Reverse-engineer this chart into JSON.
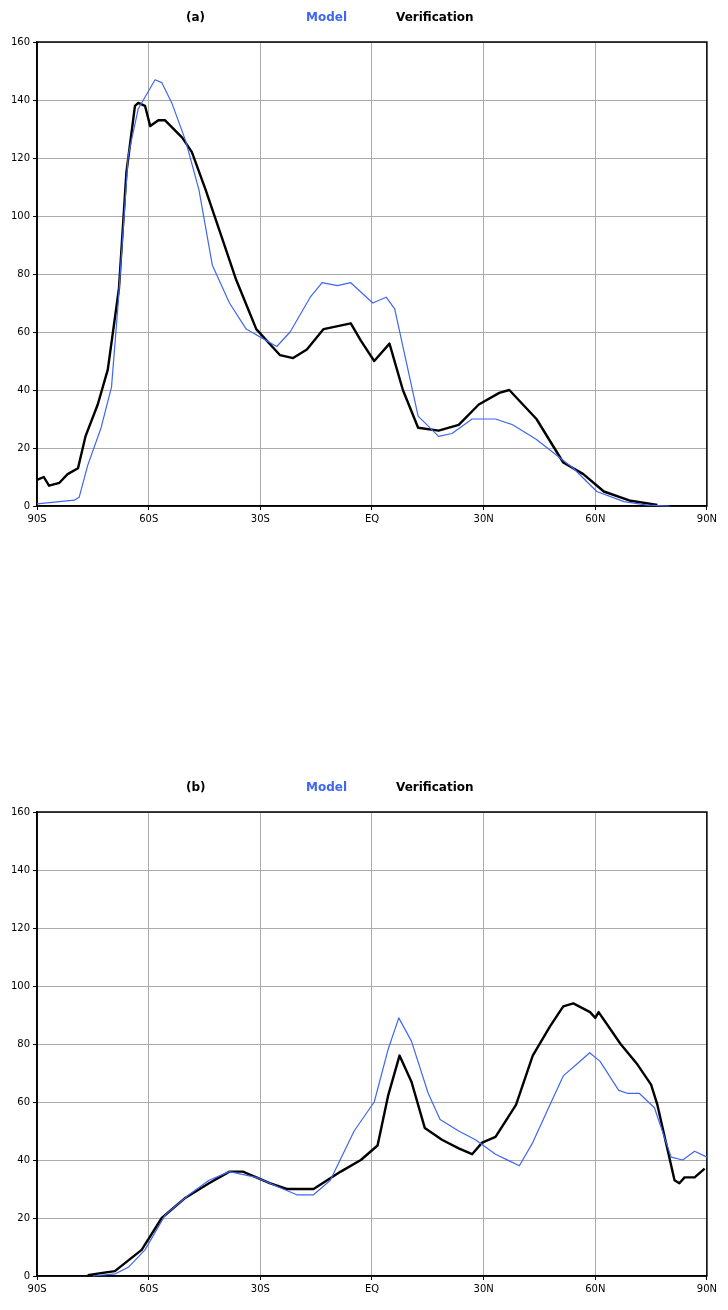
{
  "chart_data": [
    {
      "type": "line",
      "title": "(a)",
      "legend": "top",
      "grid": true,
      "xlim": [
        -90,
        90
      ],
      "ylim": [
        0,
        160
      ],
      "xticks": [
        {
          "value": -90,
          "label": "90S"
        },
        {
          "value": -60,
          "label": "60S"
        },
        {
          "value": -30,
          "label": "30S"
        },
        {
          "value": 0,
          "label": "EQ"
        },
        {
          "value": 30,
          "label": "30N"
        },
        {
          "value": 60,
          "label": "60N"
        },
        {
          "value": 90,
          "label": "90N"
        }
      ],
      "yticks": [
        0,
        20,
        40,
        60,
        80,
        100,
        120,
        140,
        160
      ],
      "series": [
        {
          "name": "Model",
          "color": "#3f66f0",
          "x": [
            -90,
            -80,
            -78.7,
            -76.4,
            -72.8,
            -70,
            -68.2,
            -65.5,
            -62.8,
            -58.3,
            -56.5,
            -53.8,
            -50.1,
            -46.5,
            -42.9,
            -38.3,
            -33.8,
            -25.6,
            -22,
            -16.6,
            -13.4,
            -9.3,
            -5.7,
            0.2,
            3.8,
            6.1,
            12.4,
            17.9,
            21.5,
            26.9,
            33.2,
            37.8,
            44.1,
            54.1,
            60.4,
            67.7,
            74,
            80
          ],
          "values": [
            0.7,
            2,
            3,
            14,
            27,
            41,
            70,
            121,
            137,
            147,
            146,
            139,
            126,
            109,
            83,
            70,
            61,
            55,
            60,
            72,
            77,
            76,
            77,
            70,
            72,
            68,
            31,
            24,
            25,
            30,
            30,
            28,
            23,
            13,
            5,
            1.5,
            0.3,
            0
          ]
        },
        {
          "name": "Verification",
          "color": "#000000",
          "x": [
            -90,
            -88.2,
            -86.8,
            -84,
            -81.8,
            -79,
            -77,
            -73.7,
            -71,
            -68,
            -66,
            -63.7,
            -62.8,
            -61,
            -59.6,
            -57.4,
            -55.6,
            -51,
            -48.4,
            -44.7,
            -40.2,
            -36.5,
            -31.1,
            -24.7,
            -21.2,
            -17.5,
            -13,
            -5.7,
            -3,
            0.6,
            4.7,
            8.3,
            12.4,
            17.9,
            23.3,
            28.7,
            34.2,
            36.9,
            44.2,
            51.4,
            56.8,
            62.3,
            69.5,
            76.7
          ],
          "values": [
            9,
            10,
            7,
            8,
            11,
            13,
            24,
            35,
            47,
            75,
            115,
            138,
            139,
            138,
            131,
            133,
            133,
            127,
            122,
            109,
            92,
            78,
            61,
            52,
            51,
            54,
            61,
            63,
            57,
            50,
            56,
            40,
            27,
            26,
            28,
            35,
            39,
            40,
            30,
            15,
            11,
            5,
            1.8,
            0.4
          ]
        }
      ]
    },
    {
      "type": "line",
      "title": "(b)",
      "legend": "top",
      "grid": true,
      "xlim": [
        -90,
        90
      ],
      "ylim": [
        0,
        160
      ],
      "xticks": [
        {
          "value": -90,
          "label": "90S"
        },
        {
          "value": -60,
          "label": "60S"
        },
        {
          "value": -30,
          "label": "30S"
        },
        {
          "value": 0,
          "label": "EQ"
        },
        {
          "value": 30,
          "label": "30N"
        },
        {
          "value": 60,
          "label": "60N"
        },
        {
          "value": 90,
          "label": "90N"
        }
      ],
      "yticks": [
        0,
        20,
        40,
        60,
        80,
        100,
        120,
        140,
        160
      ],
      "series": [
        {
          "name": "Model",
          "color": "#3f66f0",
          "x": [
            -75,
            -69.1,
            -65.5,
            -61,
            -55.6,
            -49.2,
            -43.8,
            -38.3,
            -31.1,
            -23.9,
            -20.2,
            -15.7,
            -11.2,
            -4.8,
            0.6,
            4.3,
            7.2,
            10.6,
            15.1,
            18.3,
            23.3,
            27.8,
            33.2,
            39.6,
            43.2,
            47.8,
            51.4,
            55,
            58.5,
            61.3,
            66.3,
            68.6,
            71.8,
            75.9,
            80.4,
            83.5,
            86.7,
            90
          ],
          "values": [
            0,
            0.7,
            3,
            9,
            21,
            28,
            33,
            36,
            34,
            30,
            28,
            28,
            33,
            50,
            60,
            78,
            89,
            81,
            63,
            54,
            50,
            47,
            42,
            38,
            46,
            59,
            69,
            73,
            77,
            74,
            64,
            63,
            63,
            58,
            41,
            40,
            43,
            41
          ]
        },
        {
          "name": "Verification",
          "color": "#000000",
          "x": [
            -76.4,
            -69.1,
            -61.9,
            -56.5,
            -50.1,
            -43.8,
            -38.3,
            -34.7,
            -27.5,
            -22.9,
            -15.7,
            -8.4,
            -3,
            1.5,
            4.3,
            7.4,
            10.6,
            14.2,
            18.8,
            23.3,
            26.9,
            29.6,
            33.2,
            38.7,
            43.2,
            47.8,
            51.4,
            54.1,
            58.6,
            60,
            60.9,
            66.8,
            71.3,
            75,
            76.7,
            81.3,
            82.6,
            84,
            86.7,
            89.4
          ],
          "values": [
            0.3,
            1.7,
            9,
            20,
            27,
            32,
            36,
            36,
            32,
            30,
            30,
            36,
            40,
            45,
            62,
            76,
            67,
            51,
            47,
            44,
            42,
            46,
            48,
            59,
            76,
            86,
            93,
            94,
            91,
            89,
            91,
            80,
            73,
            66,
            59,
            33,
            32,
            34,
            34,
            37
          ]
        }
      ]
    }
  ]
}
